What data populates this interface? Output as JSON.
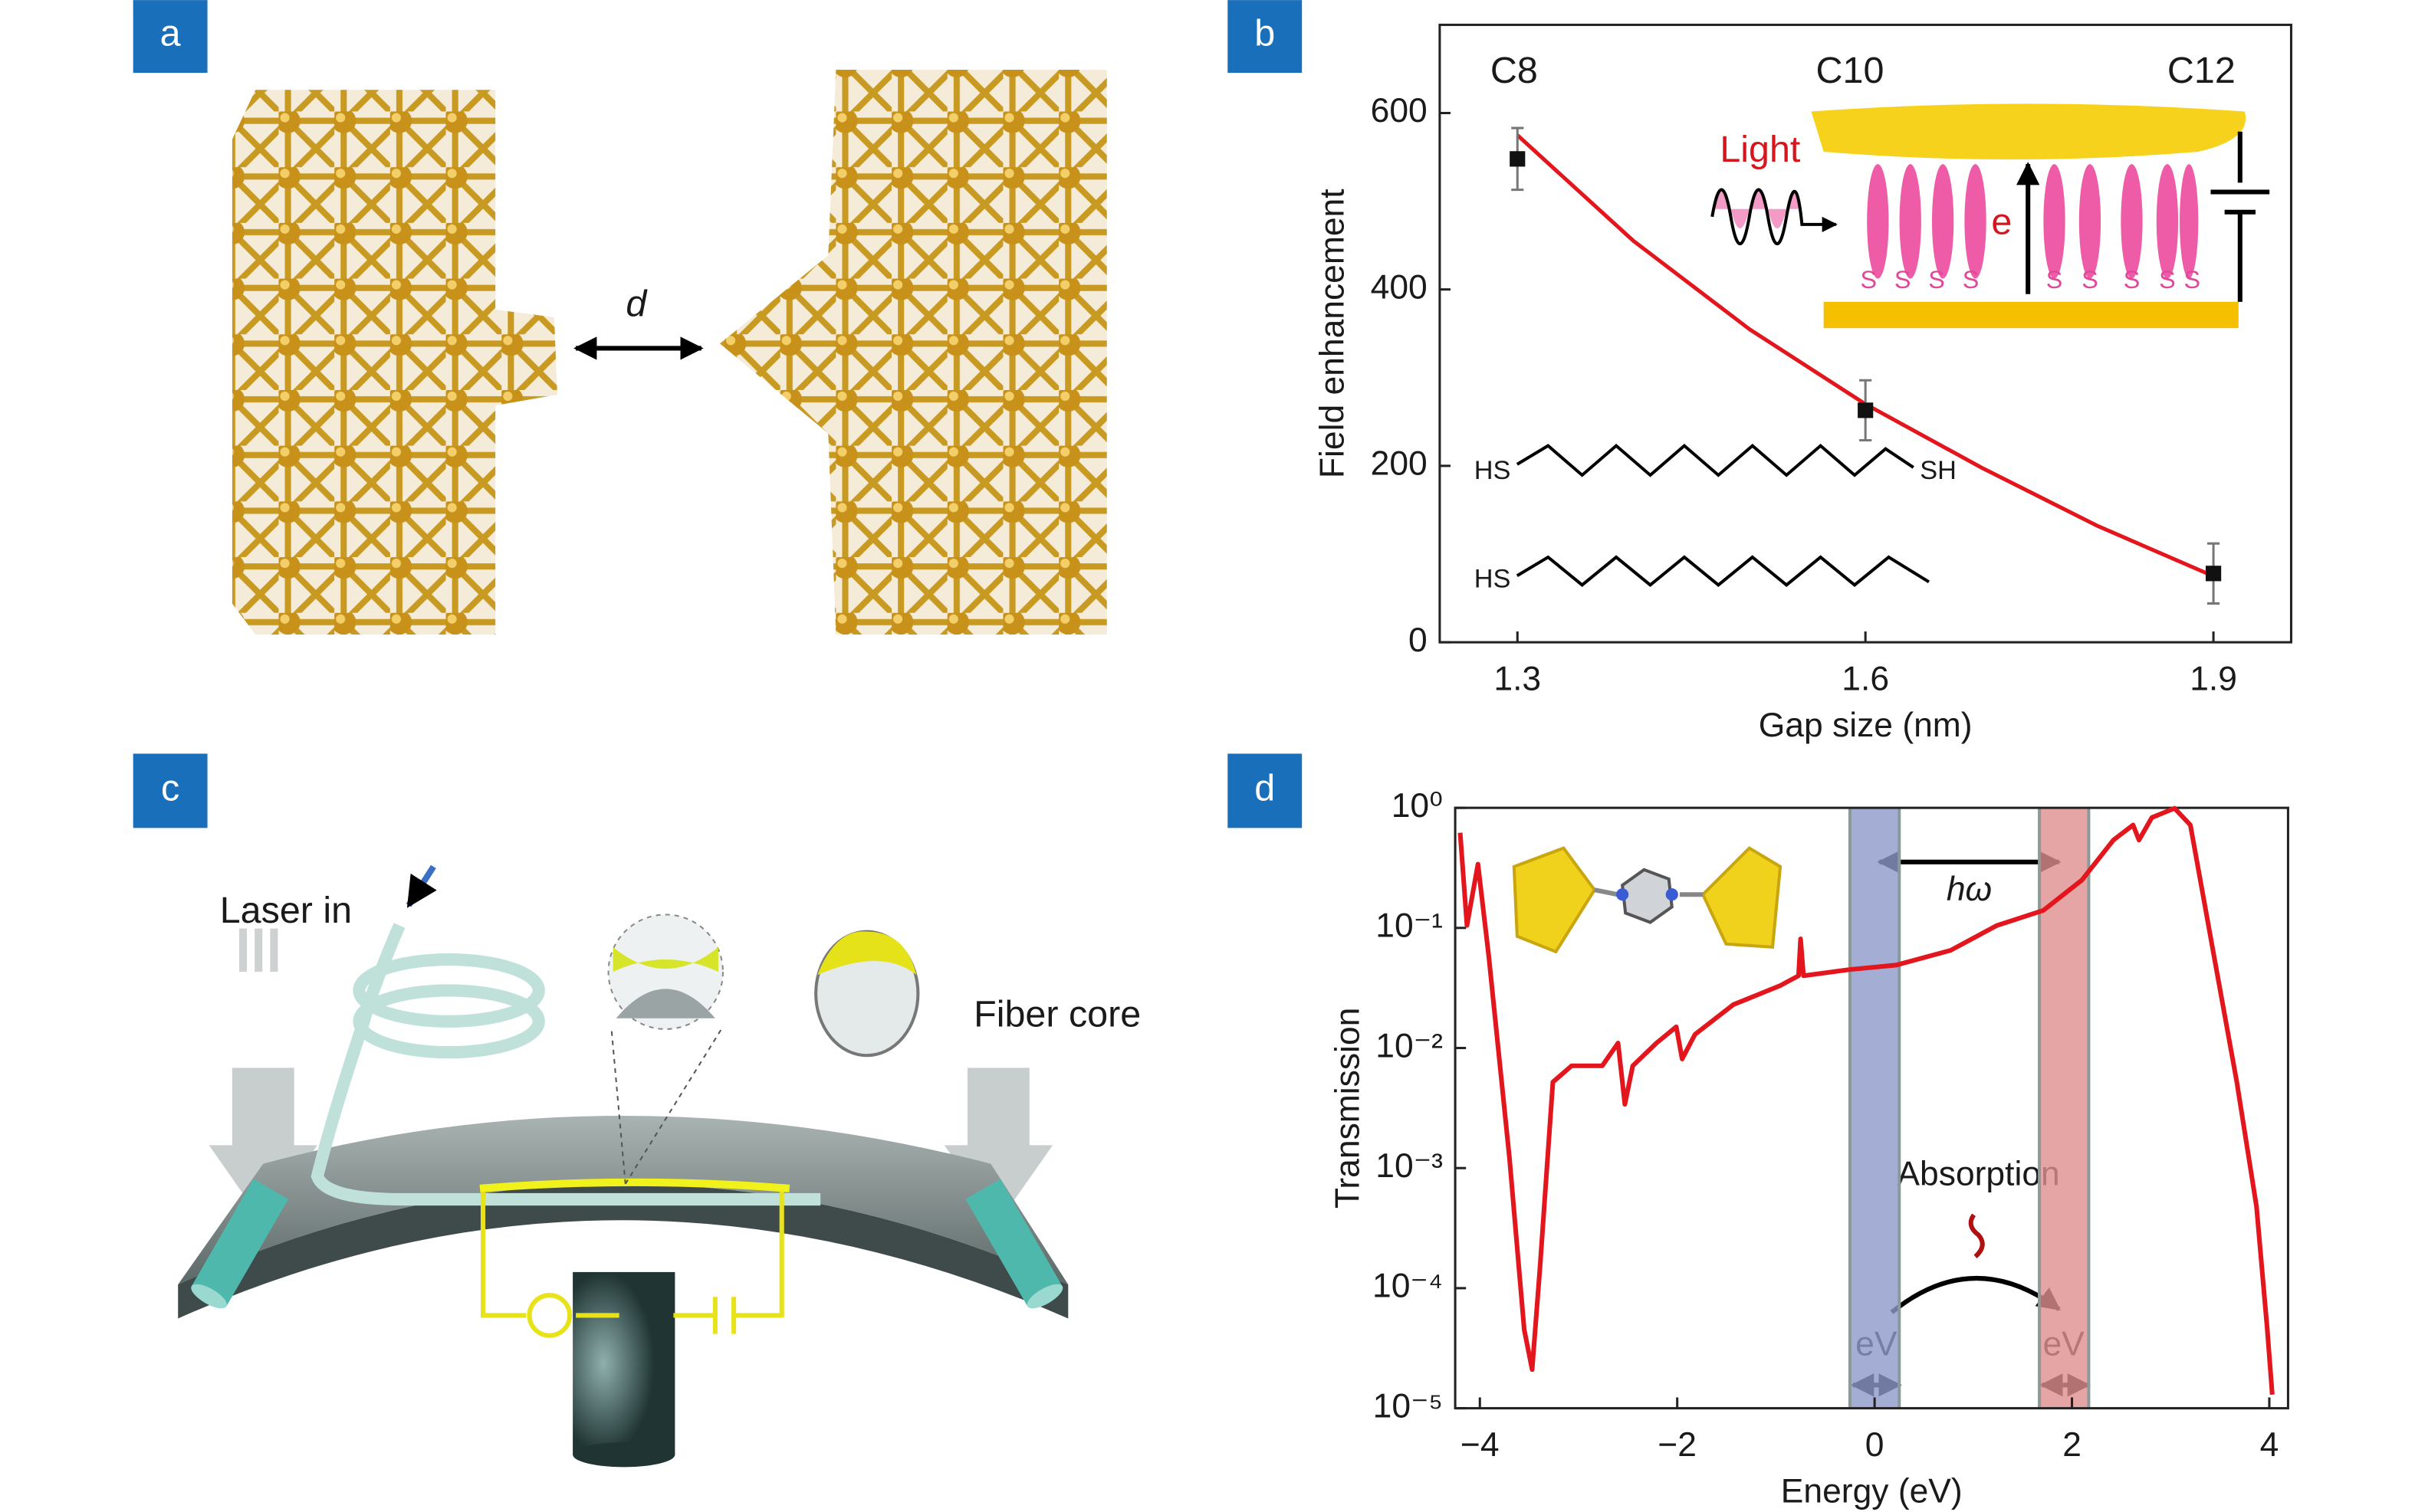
{
  "panel_labels": [
    "a",
    "b",
    "c",
    "d"
  ],
  "diagram_a": {
    "gap_label": "d"
  },
  "diagram_c": {
    "laser_label": "Laser in",
    "core_label": "Fiber core"
  },
  "chart_data": [
    {
      "type": "scatter",
      "xlabel": "Gap size (nm)",
      "ylabel": "Field enhancement",
      "x": [
        1.3,
        1.6,
        1.9
      ],
      "values": [
        548,
        263,
        78
      ],
      "errors": [
        35,
        34,
        34
      ],
      "color": "#111111",
      "fit": {
        "color": "#e3161d",
        "x": [
          1.3,
          1.4,
          1.5,
          1.6,
          1.7,
          1.8,
          1.9
        ],
        "values": [
          575,
          455,
          355,
          270,
          198,
          132,
          75
        ]
      },
      "xlim": [
        1.233,
        1.967
      ],
      "ylim": [
        0,
        700
      ],
      "xticks": [
        1.3,
        1.6,
        1.9
      ],
      "yticks": [
        0,
        200,
        400,
        600
      ],
      "annotations": {
        "chains": [
          "C8",
          "C10",
          "C12"
        ],
        "light": "Light",
        "electron": "e",
        "sulfur": [
          "S",
          "S",
          "S",
          "S",
          "S",
          "S",
          "S",
          "S",
          "S"
        ],
        "molecules": [
          "HS",
          "SH",
          "HS"
        ]
      }
    },
    {
      "type": "line",
      "xlabel": "Energy (eV)",
      "ylabel": "Transmission",
      "log_y": true,
      "color": "#e3161d",
      "x": [
        -4.2,
        -4.13,
        -4.02,
        -3.91,
        -3.7,
        -3.55,
        -3.47,
        -3.39,
        -3.26,
        -3.07,
        -2.76,
        -2.6,
        -2.53,
        -2.45,
        -2.21,
        -2.01,
        -1.95,
        -1.82,
        -1.43,
        -0.96,
        -0.77,
        -0.75,
        -0.72,
        -0.25,
        0.22,
        0.77,
        1.24,
        1.71,
        2.1,
        2.42,
        2.62,
        2.68,
        2.81,
        3.04,
        3.2,
        3.44,
        3.67,
        3.87,
        3.98,
        4.03
      ],
      "values": [
        0.62,
        0.105,
        0.34,
        0.058,
        0.0012,
        4.5e-05,
        2.1e-05,
        0.00015,
        0.0052,
        0.0071,
        0.0071,
        0.011,
        0.0034,
        0.0071,
        0.011,
        0.015,
        0.0081,
        0.013,
        0.023,
        0.033,
        0.04,
        0.081,
        0.04,
        0.045,
        0.049,
        0.065,
        0.105,
        0.14,
        0.25,
        0.54,
        0.72,
        0.54,
        0.83,
        0.99,
        0.72,
        0.058,
        0.0052,
        0.00048,
        4.5e-05,
        1.3e-05
      ],
      "bands": [
        {
          "from": -0.25,
          "to": 0.25,
          "color": "#8d99c9"
        },
        {
          "from": 1.67,
          "to": 2.17,
          "color": "#e08f8f"
        }
      ],
      "xlim": [
        -4.25,
        4.19
      ],
      "ylim": [
        1e-05,
        1
      ],
      "xticks": [
        {
          "value": -4,
          "label": "−4"
        },
        {
          "value": -2,
          "label": "−2"
        },
        0,
        2,
        4
      ],
      "yticks": [
        {
          "value": 1,
          "label": "10⁰"
        },
        {
          "value": 0.1,
          "label": "10⁻¹"
        },
        {
          "value": 0.01,
          "label": "10⁻²"
        },
        {
          "value": 0.001,
          "label": "10⁻³"
        },
        {
          "value": 0.0001,
          "label": "10⁻⁴"
        },
        {
          "value": 1e-05,
          "label": "10⁻⁵"
        }
      ],
      "annotations": {
        "photon": "hω",
        "absorption": "Absorption",
        "bias": [
          "eV",
          "eV"
        ]
      }
    }
  ]
}
